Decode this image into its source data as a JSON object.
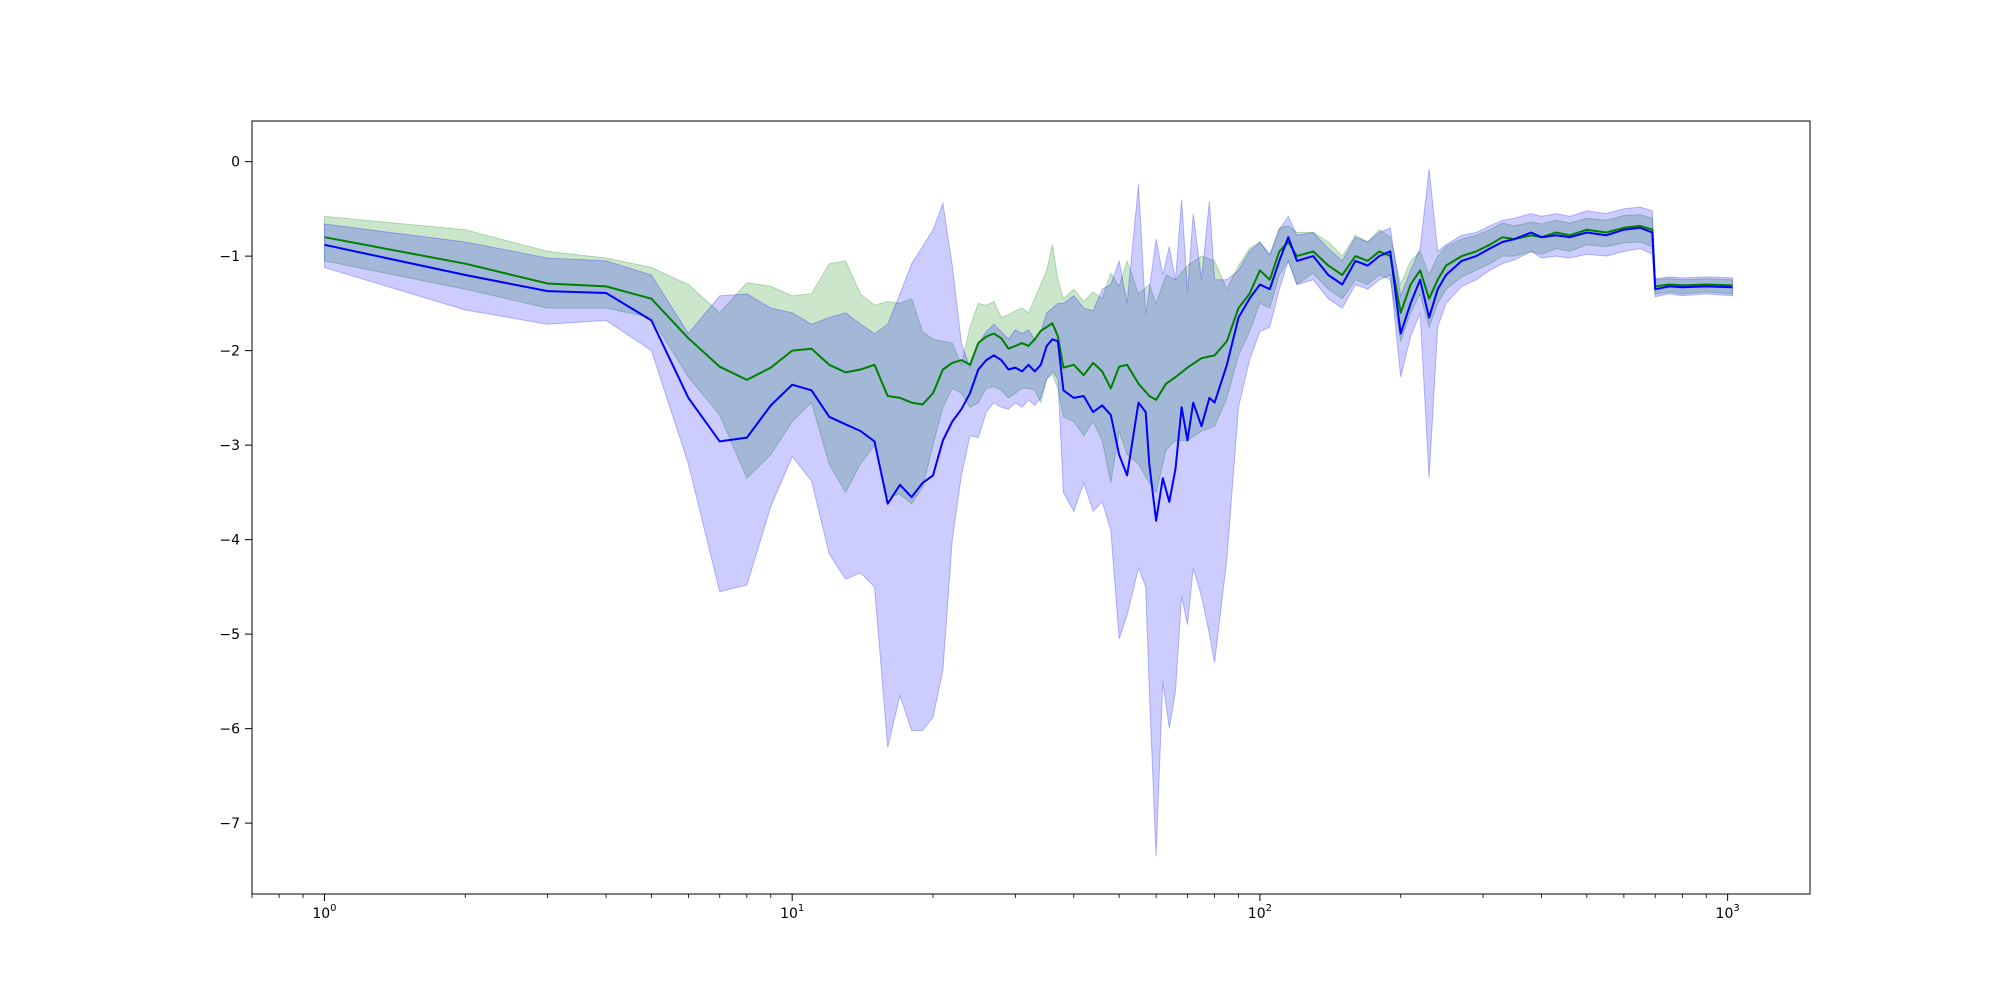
{
  "chart_data": {
    "type": "line",
    "title": "",
    "xlabel": "",
    "ylabel": "",
    "x_scale": "log",
    "xlim": [
      0.7,
      1500
    ],
    "ylim": [
      -7.75,
      0.43
    ],
    "grid": false,
    "legend": "none",
    "x_ticks": [
      {
        "value": 1,
        "base": "10",
        "exp": "0"
      },
      {
        "value": 10,
        "base": "10",
        "exp": "1"
      },
      {
        "value": 100,
        "base": "10",
        "exp": "2"
      },
      {
        "value": 1000,
        "base": "10",
        "exp": "3"
      }
    ],
    "y_ticks": [
      {
        "value": 0,
        "label": "0"
      },
      {
        "value": -1,
        "label": "−1"
      },
      {
        "value": -2,
        "label": "−2"
      },
      {
        "value": -3,
        "label": "−3"
      },
      {
        "value": -4,
        "label": "−4"
      },
      {
        "value": -5,
        "label": "−5"
      },
      {
        "value": -6,
        "label": "−6"
      },
      {
        "value": -7,
        "label": "−7"
      }
    ],
    "series": [
      {
        "color": "#008000",
        "fill_color": "#008000",
        "fill_opacity": 0.2,
        "x": [
          1,
          2,
          3,
          4,
          5,
          6,
          7,
          8,
          9,
          10,
          11,
          12,
          13,
          14,
          15,
          16,
          17,
          18,
          19,
          20,
          21,
          22,
          23,
          24,
          25,
          26,
          27,
          28,
          29,
          30,
          31,
          32,
          33,
          34,
          35,
          36,
          37,
          38,
          40,
          42,
          44,
          46,
          48,
          50,
          52,
          55,
          58,
          60,
          63,
          66,
          70,
          75,
          80,
          85,
          90,
          95,
          100,
          105,
          110,
          115,
          120,
          130,
          140,
          150,
          160,
          170,
          180,
          190,
          200,
          210,
          220,
          230,
          240,
          250,
          270,
          290,
          310,
          330,
          350,
          380,
          400,
          430,
          460,
          500,
          550,
          600,
          650,
          690,
          700,
          750,
          800,
          900,
          1024
        ],
        "y": [
          -0.8,
          -1.08,
          -1.29,
          -1.32,
          -1.45,
          -1.87,
          -2.17,
          -2.31,
          -2.18,
          -2.0,
          -1.98,
          -2.15,
          -2.23,
          -2.2,
          -2.15,
          -2.48,
          -2.5,
          -2.55,
          -2.57,
          -2.45,
          -2.2,
          -2.13,
          -2.1,
          -2.15,
          -1.92,
          -1.85,
          -1.82,
          -1.87,
          -1.98,
          -1.95,
          -1.92,
          -1.95,
          -1.88,
          -1.79,
          -1.75,
          -1.71,
          -1.85,
          -2.18,
          -2.15,
          -2.26,
          -2.13,
          -2.22,
          -2.4,
          -2.17,
          -2.15,
          -2.35,
          -2.48,
          -2.52,
          -2.35,
          -2.28,
          -2.18,
          -2.08,
          -2.05,
          -1.9,
          -1.55,
          -1.4,
          -1.15,
          -1.25,
          -0.95,
          -0.85,
          -1.0,
          -0.95,
          -1.1,
          -1.2,
          -1.0,
          -1.05,
          -0.95,
          -1.0,
          -1.6,
          -1.3,
          -1.15,
          -1.45,
          -1.25,
          -1.1,
          -1.0,
          -0.95,
          -0.88,
          -0.8,
          -0.82,
          -0.78,
          -0.8,
          -0.75,
          -0.78,
          -0.72,
          -0.75,
          -0.7,
          -0.68,
          -0.72,
          -1.32,
          -1.3,
          -1.31,
          -1.3,
          -1.31
        ],
        "upper": [
          -0.58,
          -0.72,
          -0.95,
          -1.02,
          -1.12,
          -1.3,
          -1.6,
          -1.28,
          -1.32,
          -1.42,
          -1.4,
          -1.08,
          -1.05,
          -1.4,
          -1.52,
          -1.48,
          -1.5,
          -1.45,
          -1.8,
          -1.88,
          -1.9,
          -1.92,
          -2.15,
          -1.75,
          -1.5,
          -1.52,
          -1.48,
          -1.65,
          -1.62,
          -1.58,
          -1.55,
          -1.6,
          -1.45,
          -1.3,
          -1.15,
          -0.88,
          -1.25,
          -1.45,
          -1.35,
          -1.48,
          -1.38,
          -1.45,
          -1.18,
          -1.32,
          -1.05,
          -1.4,
          -1.3,
          -1.5,
          -1.2,
          -1.25,
          -1.1,
          -1.0,
          -1.05,
          -1.35,
          -1.1,
          -0.92,
          -0.85,
          -1.0,
          -0.7,
          -0.68,
          -0.75,
          -0.75,
          -0.85,
          -1.0,
          -0.78,
          -0.85,
          -0.72,
          -0.8,
          -1.3,
          -1.05,
          -0.95,
          -1.2,
          -1.0,
          -0.9,
          -0.82,
          -0.78,
          -0.72,
          -0.65,
          -0.68,
          -0.64,
          -0.66,
          -0.62,
          -0.65,
          -0.6,
          -0.62,
          -0.57,
          -0.56,
          -0.6,
          -1.25,
          -1.24,
          -1.25,
          -1.24,
          -1.25
        ],
        "lower": [
          -1.05,
          -1.35,
          -1.55,
          -1.55,
          -1.65,
          -2.28,
          -2.68,
          -3.35,
          -3.1,
          -2.75,
          -2.55,
          -3.2,
          -3.5,
          -3.2,
          -3.0,
          -3.55,
          -3.52,
          -3.62,
          -3.45,
          -3.0,
          -2.6,
          -2.4,
          -2.45,
          -2.6,
          -2.55,
          -2.4,
          -2.38,
          -2.42,
          -2.5,
          -2.45,
          -2.4,
          -2.4,
          -2.42,
          -2.55,
          -2.3,
          -2.25,
          -2.4,
          -2.7,
          -2.75,
          -2.9,
          -2.75,
          -2.95,
          -3.4,
          -2.85,
          -3.1,
          -3.2,
          -3.4,
          -3.5,
          -3.05,
          -2.95,
          -2.95,
          -2.85,
          -2.8,
          -2.5,
          -2.05,
          -1.8,
          -1.5,
          -1.55,
          -1.2,
          -1.05,
          -1.3,
          -1.18,
          -1.35,
          -1.45,
          -1.25,
          -1.3,
          -1.2,
          -1.25,
          -1.9,
          -1.6,
          -1.4,
          -1.75,
          -1.5,
          -1.35,
          -1.22,
          -1.15,
          -1.08,
          -1.0,
          -1.0,
          -0.95,
          -0.98,
          -0.92,
          -0.95,
          -0.88,
          -0.9,
          -0.86,
          -0.85,
          -0.9,
          -1.4,
          -1.38,
          -1.4,
          -1.38,
          -1.4
        ]
      },
      {
        "color": "#0000ff",
        "fill_color": "#0000ff",
        "fill_opacity": 0.2,
        "x": [
          1,
          2,
          3,
          4,
          5,
          6,
          7,
          8,
          9,
          10,
          11,
          12,
          13,
          14,
          15,
          16,
          17,
          18,
          19,
          20,
          21,
          22,
          23,
          24,
          25,
          26,
          27,
          28,
          29,
          30,
          31,
          32,
          33,
          34,
          35,
          36,
          37,
          38,
          40,
          42,
          44,
          46,
          48,
          50,
          52,
          55,
          57,
          58,
          60,
          62,
          64,
          66,
          68,
          70,
          72,
          75,
          78,
          80,
          85,
          90,
          95,
          100,
          105,
          110,
          115,
          120,
          130,
          140,
          150,
          160,
          170,
          180,
          190,
          200,
          210,
          220,
          230,
          240,
          250,
          270,
          290,
          310,
          330,
          350,
          380,
          400,
          430,
          460,
          500,
          550,
          600,
          650,
          690,
          700,
          750,
          800,
          900,
          1024
        ],
        "y": [
          -0.88,
          -1.2,
          -1.37,
          -1.39,
          -1.68,
          -2.5,
          -2.96,
          -2.92,
          -2.58,
          -2.36,
          -2.42,
          -2.7,
          -2.78,
          -2.85,
          -2.96,
          -3.62,
          -3.42,
          -3.55,
          -3.4,
          -3.32,
          -2.95,
          -2.75,
          -2.62,
          -2.45,
          -2.2,
          -2.1,
          -2.05,
          -2.1,
          -2.2,
          -2.18,
          -2.22,
          -2.15,
          -2.22,
          -2.15,
          -1.95,
          -1.88,
          -1.9,
          -2.42,
          -2.5,
          -2.48,
          -2.65,
          -2.58,
          -2.68,
          -3.1,
          -3.32,
          -2.55,
          -2.65,
          -3.2,
          -3.8,
          -3.35,
          -3.6,
          -3.25,
          -2.6,
          -2.95,
          -2.55,
          -2.8,
          -2.5,
          -2.55,
          -2.15,
          -1.65,
          -1.45,
          -1.3,
          -1.35,
          -1.05,
          -0.8,
          -1.05,
          -1.0,
          -1.2,
          -1.3,
          -1.05,
          -1.1,
          -1.0,
          -0.95,
          -1.82,
          -1.5,
          -1.25,
          -1.65,
          -1.35,
          -1.2,
          -1.05,
          -1.0,
          -0.92,
          -0.85,
          -0.82,
          -0.75,
          -0.8,
          -0.78,
          -0.8,
          -0.75,
          -0.78,
          -0.72,
          -0.7,
          -0.75,
          -1.35,
          -1.32,
          -1.33,
          -1.32,
          -1.33
        ],
        "upper": [
          -0.66,
          -0.85,
          -1.02,
          -1.05,
          -1.2,
          -1.82,
          -1.42,
          -1.4,
          -1.55,
          -1.6,
          -1.72,
          -1.65,
          -1.6,
          -1.72,
          -1.82,
          -1.72,
          -1.4,
          -1.08,
          -0.9,
          -0.72,
          -0.44,
          -1.1,
          -1.92,
          -2.18,
          -1.92,
          -1.8,
          -1.72,
          -1.8,
          -1.88,
          -1.78,
          -1.82,
          -1.78,
          -1.88,
          -1.8,
          -1.6,
          -1.55,
          -1.5,
          -1.5,
          -1.42,
          -1.55,
          -1.58,
          -1.35,
          -1.3,
          -1.05,
          -1.5,
          -0.24,
          -1.62,
          -1.35,
          -0.82,
          -1.2,
          -0.9,
          -1.25,
          -0.4,
          -1.38,
          -0.55,
          -1.25,
          -0.42,
          -1.25,
          -1.25,
          -1.15,
          -0.95,
          -0.85,
          -0.98,
          -0.72,
          -0.58,
          -0.78,
          -0.75,
          -0.92,
          -1.05,
          -0.8,
          -0.85,
          -0.75,
          -0.7,
          -1.42,
          -1.15,
          -0.92,
          -0.08,
          -0.95,
          -0.88,
          -0.78,
          -0.75,
          -0.68,
          -0.62,
          -0.6,
          -0.55,
          -0.58,
          -0.55,
          -0.58,
          -0.52,
          -0.55,
          -0.5,
          -0.48,
          -0.52,
          -1.24,
          -1.22,
          -1.23,
          -1.22,
          -1.23
        ],
        "lower": [
          -1.12,
          -1.57,
          -1.72,
          -1.68,
          -2.0,
          -3.2,
          -4.55,
          -4.48,
          -3.65,
          -3.12,
          -3.38,
          -4.15,
          -4.42,
          -4.35,
          -4.5,
          -6.2,
          -5.65,
          -6.02,
          -6.02,
          -5.88,
          -5.38,
          -4.0,
          -3.32,
          -2.9,
          -2.92,
          -2.65,
          -2.55,
          -2.6,
          -2.62,
          -2.55,
          -2.6,
          -2.52,
          -2.58,
          -2.5,
          -2.3,
          -2.22,
          -2.3,
          -3.5,
          -3.7,
          -3.4,
          -3.7,
          -3.6,
          -3.9,
          -5.05,
          -4.8,
          -4.3,
          -4.5,
          -5.6,
          -7.35,
          -5.5,
          -6.0,
          -5.6,
          -4.6,
          -4.9,
          -4.3,
          -4.6,
          -5.0,
          -5.3,
          -4.2,
          -2.6,
          -2.1,
          -1.8,
          -1.75,
          -1.35,
          -1.05,
          -1.3,
          -1.25,
          -1.45,
          -1.55,
          -1.3,
          -1.35,
          -1.25,
          -1.2,
          -2.28,
          -1.85,
          -1.6,
          -3.35,
          -1.75,
          -1.5,
          -1.32,
          -1.25,
          -1.15,
          -1.08,
          -1.04,
          -0.95,
          -1.02,
          -1.0,
          -1.02,
          -0.98,
          -1.0,
          -0.95,
          -0.92,
          -0.98,
          -1.43,
          -1.4,
          -1.42,
          -1.4,
          -1.42
        ]
      }
    ]
  }
}
